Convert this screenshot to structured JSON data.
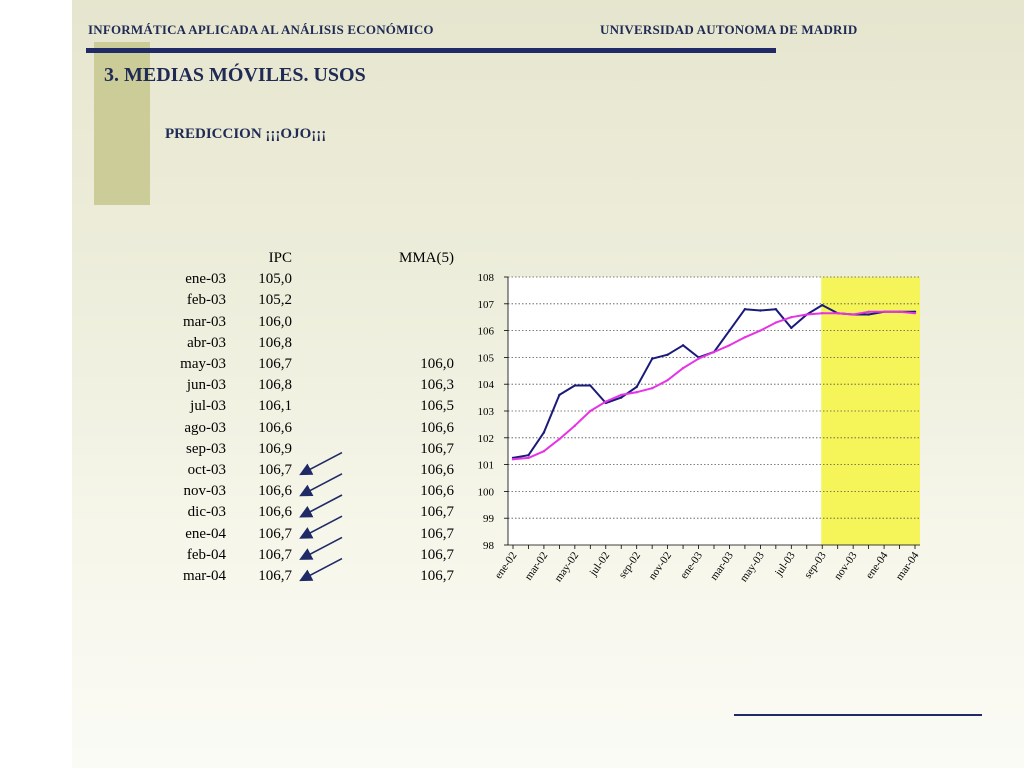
{
  "header": {
    "left": "INFORMÁTICA APLICADA AL ANÁLISIS ECONÓMICO",
    "right": "UNIVERSIDAD AUTONOMA DE MADRID"
  },
  "slide": {
    "title": "3. MEDIAS MÓVILES. USOS",
    "subtitle": "PREDICCION   ¡¡¡OJO¡¡¡"
  },
  "colors": {
    "navy": "#1f2a66",
    "ipc_line": "#1a1a7a",
    "mma_line": "#e633e6",
    "forecast_band": "#f5f55a",
    "arrow": "#1f2a66"
  },
  "table": {
    "headers": {
      "ipc": "IPC",
      "mma": "MMA(5)"
    },
    "rows": [
      {
        "month": "ene-03",
        "ipc": "105,0",
        "mma": "",
        "forecast": false
      },
      {
        "month": "feb-03",
        "ipc": "105,2",
        "mma": "",
        "forecast": false
      },
      {
        "month": "mar-03",
        "ipc": "106,0",
        "mma": "",
        "forecast": false
      },
      {
        "month": "abr-03",
        "ipc": "106,8",
        "mma": "",
        "forecast": false
      },
      {
        "month": "may-03",
        "ipc": "106,7",
        "mma": "106,0",
        "forecast": false
      },
      {
        "month": "jun-03",
        "ipc": "106,8",
        "mma": "106,3",
        "forecast": false
      },
      {
        "month": "jul-03",
        "ipc": "106,1",
        "mma": "106,5",
        "forecast": false
      },
      {
        "month": "ago-03",
        "ipc": "106,6",
        "mma": "106,6",
        "forecast": false
      },
      {
        "month": "sep-03",
        "ipc": "106,9",
        "mma": "106,7",
        "forecast": false
      },
      {
        "month": "oct-03",
        "ipc": "106,7",
        "mma": "106,6",
        "forecast": true
      },
      {
        "month": "nov-03",
        "ipc": "106,6",
        "mma": "106,6",
        "forecast": true
      },
      {
        "month": "dic-03",
        "ipc": "106,6",
        "mma": "106,7",
        "forecast": true
      },
      {
        "month": "ene-04",
        "ipc": "106,7",
        "mma": "106,7",
        "forecast": true
      },
      {
        "month": "feb-04",
        "ipc": "106,7",
        "mma": "106,7",
        "forecast": true
      },
      {
        "month": "mar-04",
        "ipc": "106,7",
        "mma": "106,7",
        "forecast": true
      }
    ]
  },
  "chart_data": {
    "type": "line",
    "ylim": [
      98,
      108
    ],
    "yticks": [
      98,
      99,
      100,
      101,
      102,
      103,
      104,
      105,
      106,
      107,
      108
    ],
    "grid": true,
    "x": [
      "ene-02",
      "feb-02",
      "mar-02",
      "abr-02",
      "may-02",
      "jun-02",
      "jul-02",
      "ago-02",
      "sep-02",
      "oct-02",
      "nov-02",
      "dic-02",
      "ene-03",
      "feb-03",
      "mar-03",
      "abr-03",
      "may-03",
      "jun-03",
      "jul-03",
      "ago-03",
      "sep-03",
      "oct-03",
      "nov-03",
      "dic-03",
      "ene-04",
      "feb-04",
      "mar-04"
    ],
    "xtick_labels": [
      "ene-02",
      "mar-02",
      "may-02",
      "jul-02",
      "sep-02",
      "nov-02",
      "ene-03",
      "mar-03",
      "may-03",
      "jul-03",
      "sep-03",
      "nov-03",
      "ene-04",
      "mar-04"
    ],
    "forecast_start": "sep-03",
    "series": [
      {
        "color": "#1a1a7a",
        "values": [
          101.25,
          101.35,
          102.2,
          103.6,
          103.95,
          103.95,
          103.3,
          103.5,
          103.9,
          104.95,
          105.1,
          105.45,
          105.0,
          105.2,
          106.0,
          106.8,
          106.75,
          106.8,
          106.1,
          106.6,
          106.95,
          106.65,
          106.6,
          106.6,
          106.7,
          106.7,
          106.7
        ]
      },
      {
        "color": "#e633e6",
        "values": [
          101.2,
          101.25,
          101.5,
          101.95,
          102.45,
          103.0,
          103.35,
          103.6,
          103.7,
          103.85,
          104.15,
          104.6,
          104.95,
          105.2,
          105.45,
          105.75,
          106.0,
          106.3,
          106.5,
          106.6,
          106.65,
          106.65,
          106.6,
          106.7,
          106.7,
          106.7,
          106.65
        ]
      }
    ]
  }
}
